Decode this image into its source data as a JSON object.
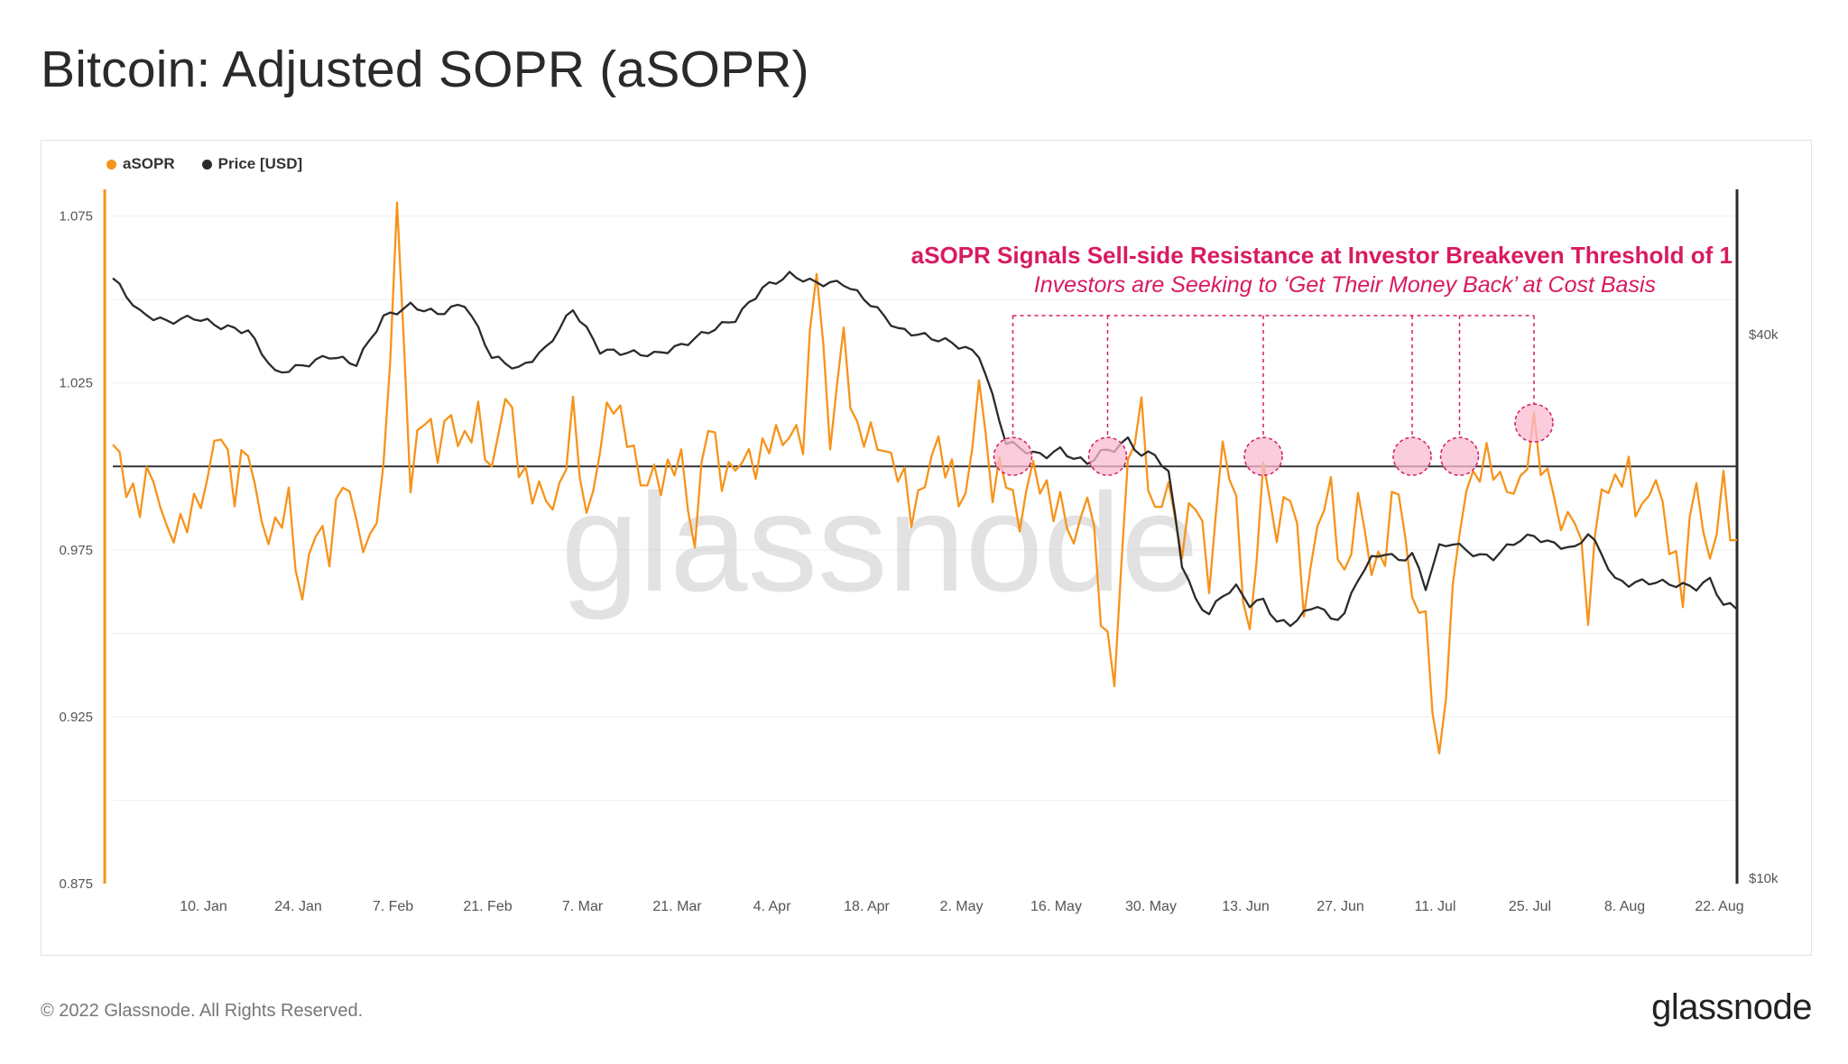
{
  "title": "Bitcoin: Adjusted SOPR (aSOPR)",
  "footer": "© 2022 Glassnode. All Rights Reserved.",
  "logo": "glassnode",
  "watermark": "glassnode",
  "colors": {
    "asopr": "#f7931a",
    "price": "#2b2b2b",
    "annotation": "#d81b60",
    "grid": "#eeeeee"
  },
  "chart_data": {
    "type": "line",
    "legend": [
      "aSOPR",
      "Price [USD]"
    ],
    "legend_position": "top-left",
    "grid": true,
    "x_ticks": [
      "10. Jan",
      "24. Jan",
      "7. Feb",
      "21. Feb",
      "7. Mar",
      "21. Mar",
      "4. Apr",
      "18. Apr",
      "2. May",
      "16. May",
      "30. May",
      "13. Jun",
      "27. Jun",
      "11. Jul",
      "25. Jul",
      "8. Aug",
      "22. Aug"
    ],
    "left_axis": {
      "ticks": [
        "1.075",
        "1.025",
        "0.975",
        "0.925",
        "0.875"
      ],
      "range": [
        0.875,
        1.083
      ]
    },
    "right_axis": {
      "ticks": [
        "$40k",
        "$10k"
      ],
      "scale": "log"
    },
    "breakeven_line": 1.0,
    "annotation": {
      "title": "aSOPR Signals Sell-side Resistance at Investor Breakeven Threshold of 1",
      "subtitle": "Investors are Seeking to ‘Get Their Money Back’ at Cost Basis"
    },
    "highlight_days": [
      133,
      147,
      170,
      192,
      199,
      210
    ],
    "asopr_keypoints": [
      [
        0,
        1.004
      ],
      [
        2,
        0.996
      ],
      [
        4,
        0.99
      ],
      [
        6,
        0.996
      ],
      [
        8,
        0.983
      ],
      [
        10,
        0.978
      ],
      [
        12,
        0.99
      ],
      [
        14,
        0.995
      ],
      [
        16,
        1.011
      ],
      [
        18,
        0.995
      ],
      [
        20,
        1.003
      ],
      [
        22,
        0.985
      ],
      [
        24,
        0.978
      ],
      [
        26,
        0.99
      ],
      [
        28,
        0.96
      ],
      [
        30,
        0.98
      ],
      [
        32,
        0.978
      ],
      [
        34,
        0.994
      ],
      [
        36,
        0.985
      ],
      [
        38,
        0.975
      ],
      [
        40,
        0.995
      ],
      [
        42,
        1.08
      ],
      [
        44,
        0.992
      ],
      [
        46,
        1.02
      ],
      [
        48,
        1.003
      ],
      [
        50,
        1.015
      ],
      [
        52,
        1.008
      ],
      [
        54,
        1.012
      ],
      [
        56,
        1.001
      ],
      [
        58,
        1.02
      ],
      [
        60,
        1.003
      ],
      [
        62,
        0.993
      ],
      [
        64,
        0.988
      ],
      [
        66,
        0.994
      ],
      [
        68,
        1.013
      ],
      [
        70,
        0.986
      ],
      [
        72,
        1.005
      ],
      [
        74,
        1.02
      ],
      [
        76,
        1.012
      ],
      [
        78,
        0.992
      ],
      [
        80,
        1.0
      ],
      [
        82,
        0.995
      ],
      [
        84,
        1.003
      ],
      [
        86,
        0.978
      ],
      [
        88,
        1.013
      ],
      [
        90,
        1.0
      ],
      [
        92,
        0.997
      ],
      [
        94,
        1.004
      ],
      [
        96,
        1.003
      ],
      [
        98,
        1.008
      ],
      [
        100,
        1.012
      ],
      [
        102,
        1.005
      ],
      [
        104,
        1.065
      ],
      [
        106,
        1.005
      ],
      [
        108,
        1.039
      ],
      [
        110,
        1.01
      ],
      [
        112,
        1.007
      ],
      [
        114,
        1.008
      ],
      [
        116,
        0.997
      ],
      [
        118,
        0.988
      ],
      [
        120,
        0.996
      ],
      [
        122,
        1.005
      ],
      [
        124,
        1.0
      ],
      [
        126,
        0.985
      ],
      [
        128,
        1.028
      ],
      [
        130,
        0.992
      ],
      [
        132,
        0.998
      ],
      [
        134,
        0.985
      ],
      [
        136,
        0.997
      ],
      [
        138,
        0.994
      ],
      [
        140,
        0.986
      ],
      [
        142,
        0.977
      ],
      [
        144,
        0.995
      ],
      [
        146,
        0.955
      ],
      [
        148,
        0.94
      ],
      [
        150,
        0.998
      ],
      [
        152,
        1.018
      ],
      [
        154,
        0.983
      ],
      [
        156,
        0.993
      ],
      [
        158,
        0.978
      ],
      [
        160,
        0.989
      ],
      [
        162,
        0.968
      ],
      [
        164,
        1.005
      ],
      [
        166,
        0.987
      ],
      [
        168,
        0.948
      ],
      [
        170,
        0.997
      ],
      [
        172,
        0.983
      ],
      [
        174,
        0.992
      ],
      [
        176,
        0.96
      ],
      [
        178,
        0.982
      ],
      [
        180,
        0.991
      ],
      [
        182,
        0.967
      ],
      [
        184,
        0.987
      ],
      [
        186,
        0.972
      ],
      [
        188,
        0.974
      ],
      [
        190,
        0.995
      ],
      [
        192,
        0.963
      ],
      [
        194,
        0.95
      ],
      [
        196,
        0.912
      ],
      [
        198,
        0.96
      ],
      [
        200,
        0.995
      ],
      [
        202,
        1.001
      ],
      [
        204,
        0.998
      ],
      [
        206,
        0.996
      ],
      [
        208,
        0.991
      ],
      [
        210,
        1.013
      ],
      [
        212,
        0.996
      ],
      [
        214,
        0.981
      ],
      [
        216,
        0.99
      ],
      [
        218,
        0.954
      ],
      [
        220,
        0.997
      ],
      [
        222,
        0.993
      ],
      [
        224,
        0.998
      ],
      [
        226,
        0.987
      ],
      [
        228,
        0.994
      ],
      [
        230,
        0.981
      ],
      [
        232,
        0.96
      ],
      [
        234,
        0.998
      ],
      [
        236,
        0.97
      ],
      [
        238,
        0.992
      ],
      [
        240,
        0.977
      ]
    ],
    "price_keypoints_usd": [
      [
        0,
        47000
      ],
      [
        4,
        43000
      ],
      [
        8,
        42000
      ],
      [
        12,
        42500
      ],
      [
        16,
        41500
      ],
      [
        20,
        41000
      ],
      [
        24,
        36800
      ],
      [
        28,
        37500
      ],
      [
        32,
        38500
      ],
      [
        36,
        37700
      ],
      [
        40,
        42500
      ],
      [
        44,
        43800
      ],
      [
        48,
        42900
      ],
      [
        52,
        44000
      ],
      [
        56,
        38400
      ],
      [
        60,
        37200
      ],
      [
        64,
        39200
      ],
      [
        68,
        43400
      ],
      [
        72,
        39000
      ],
      [
        76,
        38800
      ],
      [
        80,
        38600
      ],
      [
        84,
        39500
      ],
      [
        88,
        41000
      ],
      [
        92,
        42300
      ],
      [
        96,
        45800
      ],
      [
        100,
        47400
      ],
      [
        104,
        46400
      ],
      [
        108,
        46400
      ],
      [
        112,
        44000
      ],
      [
        116,
        41200
      ],
      [
        120,
        40500
      ],
      [
        124,
        39800
      ],
      [
        128,
        38600
      ],
      [
        130,
        34600
      ],
      [
        132,
        30800
      ],
      [
        134,
        30400
      ],
      [
        136,
        29900
      ],
      [
        138,
        29800
      ],
      [
        140,
        30200
      ],
      [
        142,
        29600
      ],
      [
        144,
        29200
      ],
      [
        146,
        30000
      ],
      [
        148,
        30300
      ],
      [
        150,
        31000
      ],
      [
        152,
        29800
      ],
      [
        154,
        29900
      ],
      [
        156,
        28400
      ],
      [
        158,
        22500
      ],
      [
        160,
        20500
      ],
      [
        162,
        19800
      ],
      [
        164,
        20800
      ],
      [
        166,
        21200
      ],
      [
        168,
        20300
      ],
      [
        170,
        20500
      ],
      [
        172,
        19400
      ],
      [
        174,
        19300
      ],
      [
        176,
        19800
      ],
      [
        178,
        20300
      ],
      [
        180,
        19500
      ],
      [
        182,
        19800
      ],
      [
        184,
        21700
      ],
      [
        186,
        22800
      ],
      [
        188,
        23200
      ],
      [
        190,
        22700
      ],
      [
        192,
        23100
      ],
      [
        194,
        21200
      ],
      [
        196,
        23500
      ],
      [
        198,
        23800
      ],
      [
        200,
        23300
      ],
      [
        202,
        23000
      ],
      [
        204,
        22900
      ],
      [
        206,
        23500
      ],
      [
        208,
        24000
      ],
      [
        210,
        24200
      ],
      [
        212,
        23800
      ],
      [
        214,
        23600
      ],
      [
        216,
        23400
      ],
      [
        218,
        24400
      ],
      [
        220,
        23100
      ],
      [
        222,
        21600
      ],
      [
        224,
        21400
      ],
      [
        226,
        21500
      ],
      [
        228,
        21500
      ],
      [
        230,
        21400
      ],
      [
        232,
        21300
      ],
      [
        234,
        21200
      ],
      [
        236,
        21600
      ],
      [
        238,
        20300
      ],
      [
        240,
        20100
      ]
    ]
  }
}
